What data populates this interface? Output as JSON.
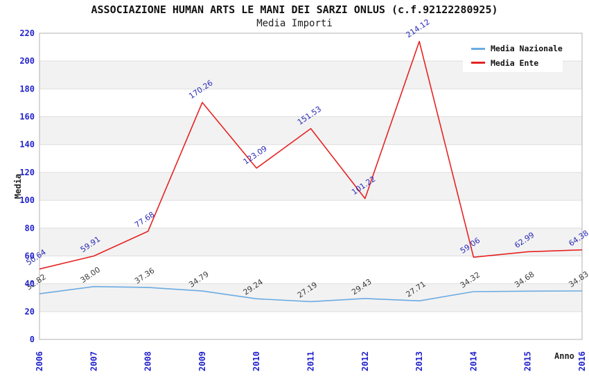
{
  "chart_data": {
    "type": "line",
    "title": "ASSOCIAZIONE HUMAN ARTS LE MANI DEI SARZI ONLUS (c.f.92122280925)",
    "subtitle": "Media Importi",
    "xlabel": "Anno",
    "ylabel": "Media",
    "categories": [
      "2006",
      "2007",
      "2008",
      "2009",
      "2010",
      "2011",
      "2012",
      "2013",
      "2014",
      "2015",
      "2016"
    ],
    "series": [
      {
        "name": "Media Nazionale",
        "color": "#6aabe2",
        "label_color": "#3c3c3c",
        "values": [
          32.82,
          38.0,
          37.36,
          34.79,
          29.24,
          27.19,
          29.43,
          27.71,
          34.32,
          34.68,
          34.83
        ]
      },
      {
        "name": "Media Ente",
        "color": "#e62222",
        "label_color": "#2a2ab8",
        "values": [
          50.64,
          59.91,
          77.68,
          170.26,
          123.09,
          151.53,
          101.22,
          214.12,
          59.06,
          62.99,
          64.38
        ]
      }
    ],
    "ylim": [
      0,
      220
    ],
    "ytick_step": 20,
    "yticks": [
      0,
      20,
      40,
      60,
      80,
      100,
      120,
      140,
      160,
      180,
      200,
      220
    ],
    "grid": true,
    "legend_position": "top-right",
    "styles": {
      "tick_label_color": "#2222cc",
      "band_color_even": "#ffffff",
      "band_color_odd": "#f2f2f2",
      "gridline_color": "#dedede",
      "plot_border_color": "#b0b0b0",
      "background_color": "#ffffff"
    }
  }
}
